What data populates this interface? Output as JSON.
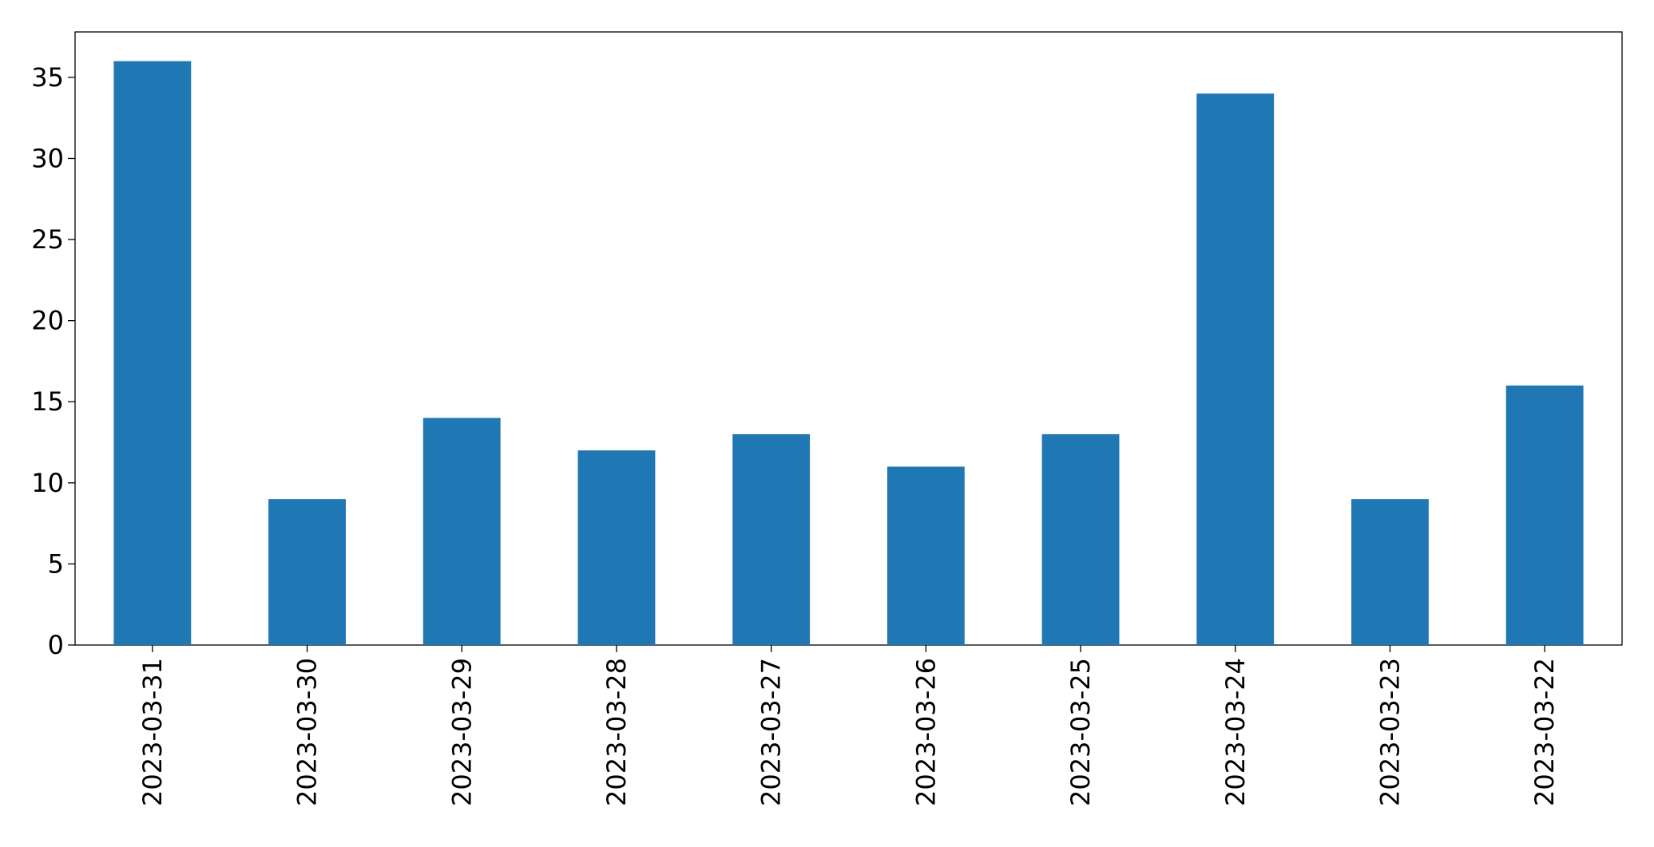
{
  "chart_data": {
    "type": "bar",
    "categories": [
      "2023-03-31",
      "2023-03-30",
      "2023-03-29",
      "2023-03-28",
      "2023-03-27",
      "2023-03-26",
      "2023-03-25",
      "2023-03-24",
      "2023-03-23",
      "2023-03-22"
    ],
    "values": [
      36,
      9,
      14,
      12,
      13,
      11,
      13,
      34,
      9,
      16
    ],
    "color": "#1f77b4",
    "ylim": [
      0,
      37.8
    ],
    "yticks": [
      0,
      5,
      10,
      15,
      20,
      25,
      30,
      35
    ],
    "grid": false
  }
}
